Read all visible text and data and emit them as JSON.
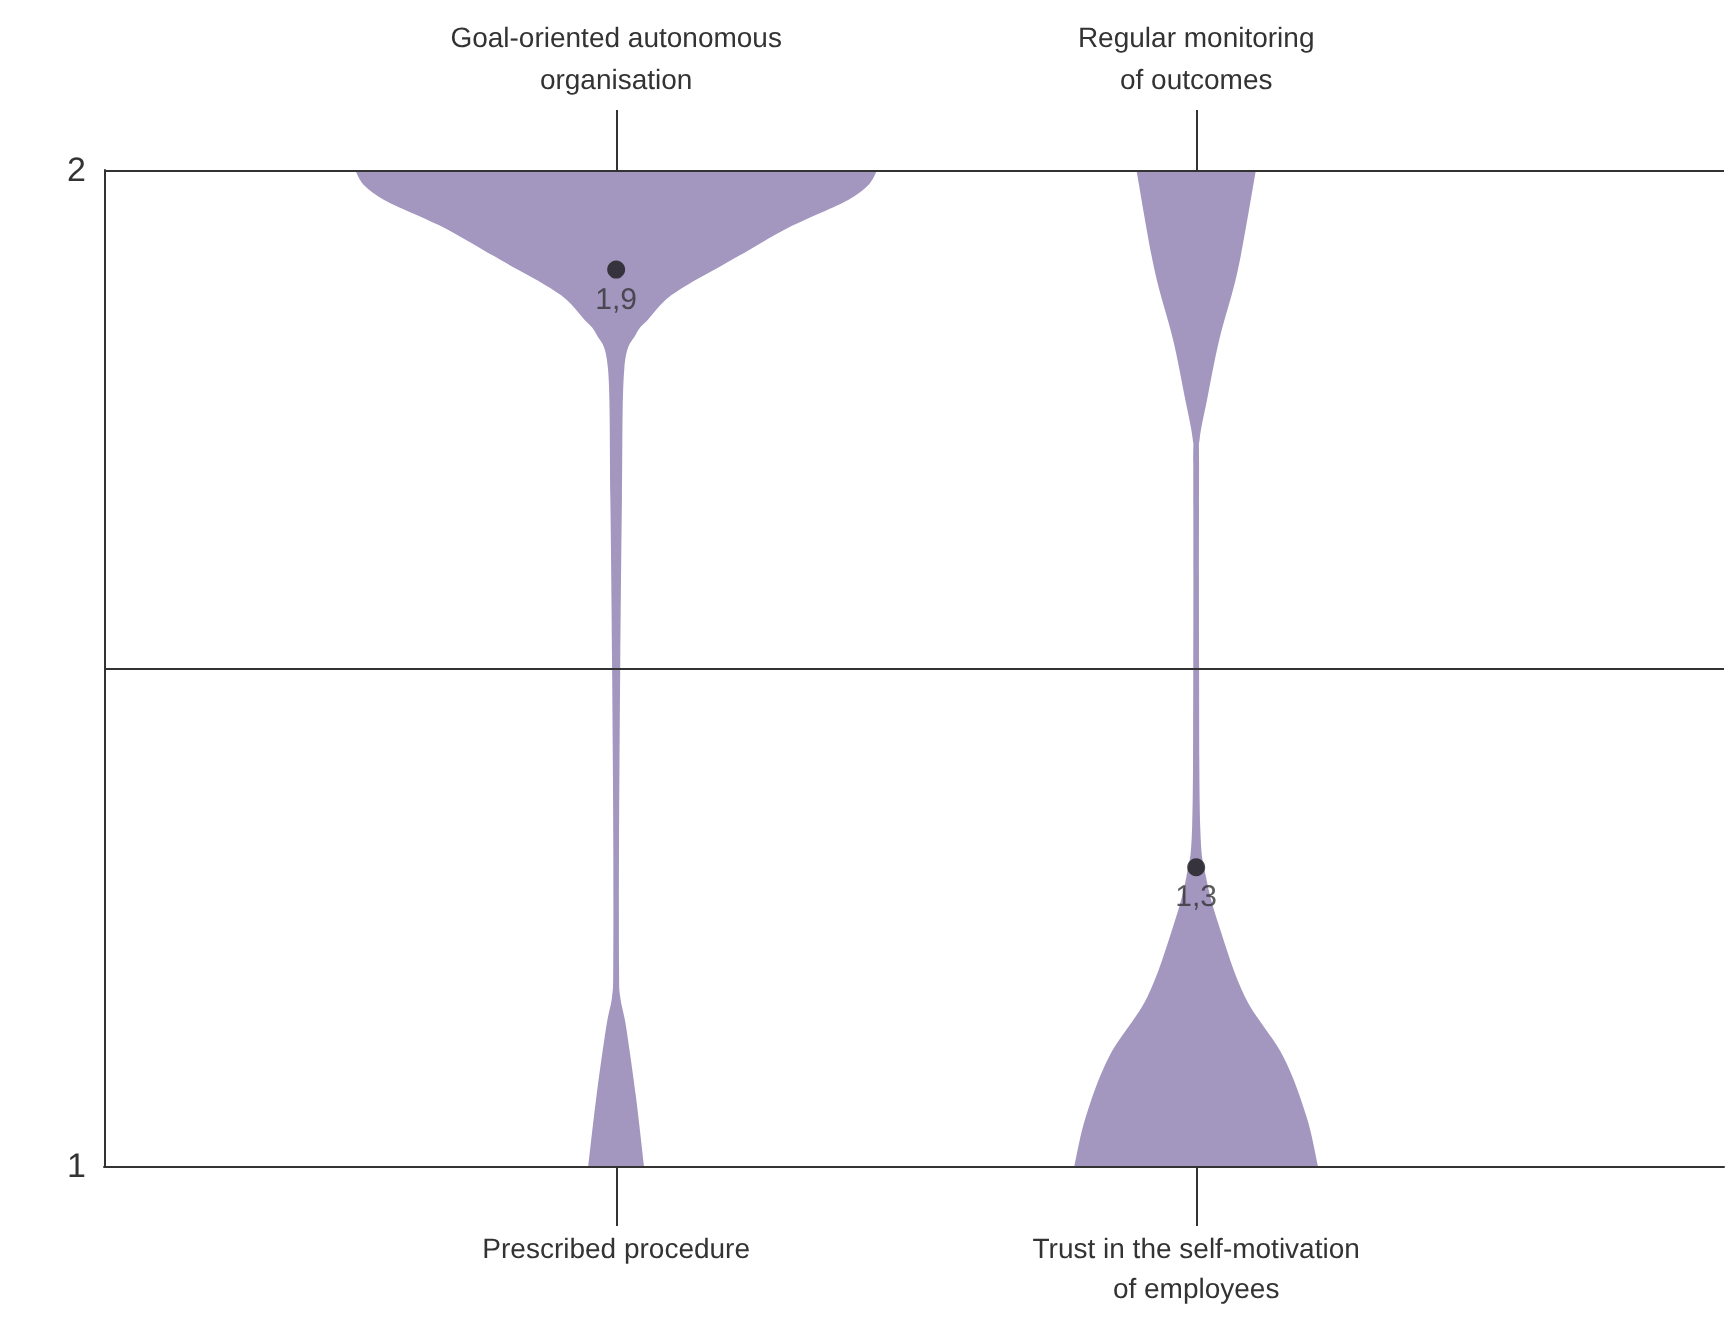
{
  "chart_data": {
    "type": "scatter",
    "categories": [
      "Prescribed procedure",
      "Trust in the self-motivation of employees"
    ],
    "ylim": [
      1,
      2
    ],
    "yticks": [
      1,
      {
        "value": 1.5,
        "label": null
      },
      2
    ],
    "grid": "y",
    "series": [
      {
        "color": "#1a1a1a",
        "marker": "circle",
        "values": [
          1.9,
          1.3
        ],
        "value_labels": [
          "1,9",
          "1,3"
        ]
      }
    ],
    "annotations": [
      "Goal-oriented autonomous organisation",
      "Regular monitoring of outcomes"
    ]
  }
}
